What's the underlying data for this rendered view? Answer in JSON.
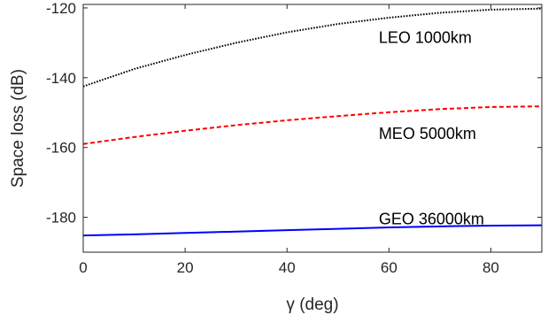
{
  "chart_data": {
    "type": "line",
    "title": "",
    "xlabel": "γ (deg)",
    "ylabel": "Space loss (dB)",
    "xlim": [
      0,
      90
    ],
    "ylim": [
      -190,
      -119
    ],
    "xticks": [
      0,
      20,
      40,
      60,
      80
    ],
    "yticks": [
      -120,
      -140,
      -160,
      -180
    ],
    "xtick_labels": [
      "0",
      "20",
      "40",
      "60",
      "80"
    ],
    "ytick_labels": [
      "-120",
      "-140",
      "-160",
      "-180"
    ],
    "grid": false,
    "x": [
      0,
      10,
      20,
      30,
      40,
      50,
      60,
      70,
      80,
      90
    ],
    "series": [
      {
        "name": "LEO 1000km",
        "color": "#000000",
        "dash": "dotted",
        "values": [
          -142.5,
          -137.5,
          -133.5,
          -130.0,
          -127.0,
          -124.6,
          -122.8,
          -121.4,
          -120.5,
          -120.2
        ]
      },
      {
        "name": "MEO 5000km",
        "color": "#ff0000",
        "dash": "dashed",
        "values": [
          -159.0,
          -157.0,
          -155.2,
          -153.6,
          -152.2,
          -151.0,
          -149.9,
          -149.0,
          -148.4,
          -148.2
        ]
      },
      {
        "name": "GEO 36000km",
        "color": "#0000ff",
        "dash": "solid",
        "values": [
          -185.2,
          -184.9,
          -184.5,
          -184.1,
          -183.7,
          -183.3,
          -182.9,
          -182.6,
          -182.4,
          -182.3
        ]
      }
    ],
    "annotations": [
      {
        "text": "LEO 1000km",
        "x": 58,
        "y": -128.5
      },
      {
        "text": "MEO 5000km",
        "x": 58,
        "y": -156
      },
      {
        "text": "GEO 36000km",
        "x": 58,
        "y": -180.5
      }
    ]
  }
}
